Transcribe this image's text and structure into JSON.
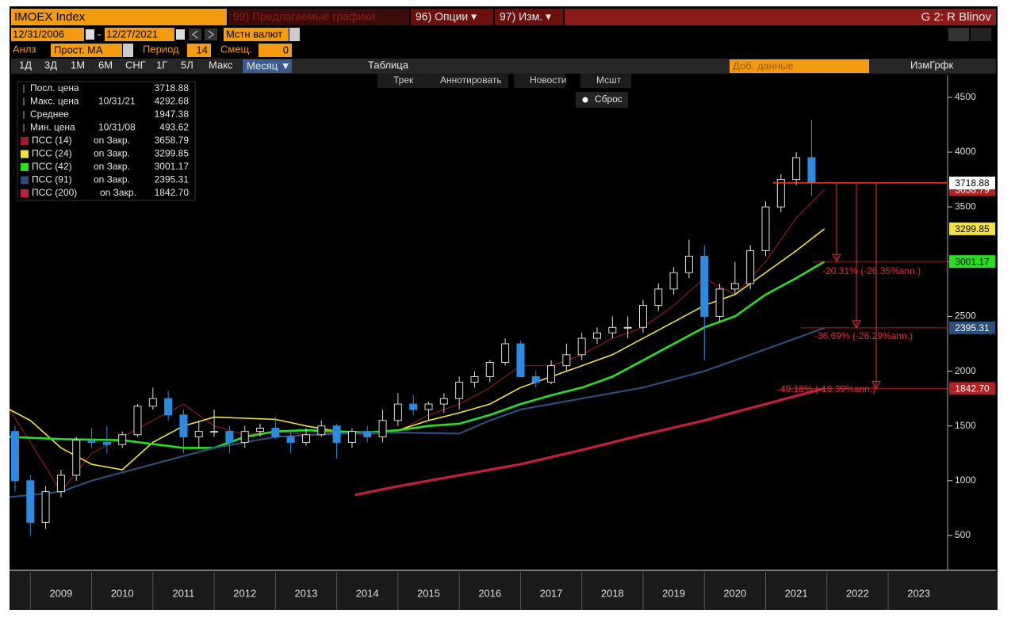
{
  "ui": {
    "security": "IMOEX Index",
    "suggested": "99) Предлагаемые графики",
    "options": "96) Опции ▾",
    "edit": "97) Изм. ▾",
    "user": "G 2: R Blinov",
    "start_date": "12/31/2006",
    "end_date": "12/27/2021",
    "currency": "Мстн валют",
    "analysis_label": "Анлз",
    "analysis": "Прост. MA",
    "period_label": "Период",
    "period": 14,
    "shift_label": "Смещ.",
    "shift": 0,
    "ranges": [
      "1Д",
      "3Д",
      "1М",
      "6М",
      "СНГ",
      "1Г",
      "5Л",
      "Макс"
    ],
    "frequency": "Месяц ▼",
    "table": "Таблица",
    "add_data": "Доб. данные",
    "edit_chart": "ИзмГрфк",
    "tools": [
      "Трек",
      "Аннотировать",
      "Новости",
      "Мсшт"
    ],
    "reset": "Сброс"
  },
  "chart_data": {
    "type": "candlestick",
    "xlim": [
      2008.66,
      2023.97
    ],
    "xticks": [
      {
        "value": 2009.5,
        "label": "2009"
      },
      {
        "value": 2010.5,
        "label": "2010"
      },
      {
        "value": 2011.5,
        "label": "2011"
      },
      {
        "value": 2012.5,
        "label": "2012"
      },
      {
        "value": 2013.5,
        "label": "2013"
      },
      {
        "value": 2014.5,
        "label": "2014"
      },
      {
        "value": 2015.5,
        "label": "2015"
      },
      {
        "value": 2016.5,
        "label": "2016"
      },
      {
        "value": 2017.5,
        "label": "2017"
      },
      {
        "value": 2018.5,
        "label": "2018"
      },
      {
        "value": 2019.5,
        "label": "2019"
      },
      {
        "value": 2020.5,
        "label": "2020"
      },
      {
        "value": 2021.5,
        "label": "2021"
      },
      {
        "value": 2022.5,
        "label": "2022"
      },
      {
        "value": 2023.5,
        "label": "2023"
      }
    ],
    "ylim": [
      196,
      4702
    ],
    "yticks": [
      500,
      1000,
      1500,
      2000,
      2500,
      3000,
      3500,
      4000,
      4500
    ],
    "stats": [
      {
        "name": "Посл. цена",
        "value": 3718.88
      },
      {
        "name": "Макс. цена",
        "date": "10/31/21",
        "value": 4292.68
      },
      {
        "name": "Среднее",
        "value": 1947.38
      },
      {
        "name": "Мин. цена",
        "date": "10/31/08",
        "value": 493.62
      }
    ],
    "candles": {
      "x": [
        2008.75,
        2009.0,
        2009.25,
        2009.5,
        2009.75,
        2010.0,
        2010.25,
        2010.5,
        2010.75,
        2011.0,
        2011.25,
        2011.5,
        2011.75,
        2012.0,
        2012.25,
        2012.5,
        2012.75,
        2013.0,
        2013.25,
        2013.5,
        2013.75,
        2014.0,
        2014.25,
        2014.5,
        2014.75,
        2015.0,
        2015.25,
        2015.5,
        2015.75,
        2016.0,
        2016.25,
        2016.5,
        2016.75,
        2017.0,
        2017.25,
        2017.5,
        2017.75,
        2018.0,
        2018.25,
        2018.5,
        2018.75,
        2019.0,
        2019.25,
        2019.5,
        2019.75,
        2020.0,
        2020.25,
        2020.5,
        2020.75,
        2021.0,
        2021.25,
        2021.5,
        2021.75
      ],
      "open": [
        1450,
        1000,
        620,
        900,
        1050,
        1370,
        1350,
        1330,
        1420,
        1680,
        1750,
        1600,
        1400,
        1450,
        1450,
        1350,
        1450,
        1480,
        1400,
        1350,
        1420,
        1500,
        1350,
        1450,
        1400,
        1550,
        1700,
        1650,
        1700,
        1750,
        1900,
        1950,
        2080,
        2250,
        1950,
        1900,
        2050,
        2150,
        2300,
        2350,
        2400,
        2400,
        2600,
        2750,
        2900,
        3050,
        2500,
        2750,
        2800,
        3100,
        3500,
        3750,
        3950
      ],
      "high": [
        1500,
        1050,
        950,
        1100,
        1400,
        1480,
        1500,
        1450,
        1700,
        1850,
        1820,
        1650,
        1550,
        1650,
        1500,
        1500,
        1520,
        1580,
        1450,
        1480,
        1550,
        1520,
        1480,
        1500,
        1650,
        1800,
        1780,
        1720,
        1800,
        1950,
        2000,
        2100,
        2300,
        2280,
        2000,
        2100,
        2250,
        2350,
        2400,
        2500,
        2500,
        2650,
        2800,
        2950,
        3200,
        3150,
        2800,
        3000,
        3150,
        3550,
        3800,
        4000,
        4292.68
      ],
      "low": [
        900,
        493.62,
        560,
        850,
        1000,
        1300,
        1250,
        1300,
        1400,
        1650,
        1550,
        1250,
        1300,
        1400,
        1250,
        1300,
        1400,
        1380,
        1250,
        1320,
        1400,
        1200,
        1300,
        1350,
        1350,
        1500,
        1600,
        1550,
        1620,
        1650,
        1850,
        1900,
        2050,
        1950,
        1850,
        1880,
        2000,
        2100,
        2250,
        2300,
        2300,
        2350,
        2550,
        2700,
        2850,
        2100,
        2450,
        2700,
        2750,
        3050,
        3450,
        3700,
        3600
      ],
      "close": [
        1000,
        620,
        900,
        1050,
        1370,
        1350,
        1330,
        1420,
        1680,
        1750,
        1600,
        1400,
        1450,
        1450,
        1350,
        1450,
        1480,
        1400,
        1350,
        1420,
        1500,
        1350,
        1450,
        1400,
        1550,
        1700,
        1650,
        1700,
        1750,
        1900,
        1950,
        2080,
        2250,
        1950,
        1900,
        2050,
        2150,
        2300,
        2350,
        2400,
        2400,
        2600,
        2750,
        2900,
        3050,
        2500,
        2750,
        2800,
        3100,
        3500,
        3750,
        3950,
        3718.88
      ],
      "up_color": "#d8d8d8",
      "down_color": "#2b8be0"
    },
    "series": [
      {
        "name": "ПСС (14)",
        "field": "on Закр.",
        "color": "#a31b2b",
        "last_label": "3658.79",
        "x": [
          2008.66,
          2009.0,
          2009.5,
          2010.0,
          2010.5,
          2011.0,
          2011.5,
          2012.0,
          2012.5,
          2013.0,
          2013.5,
          2014.0,
          2014.5,
          2015.0,
          2015.5,
          2016.0,
          2016.5,
          2017.0,
          2017.5,
          2018.0,
          2018.5,
          2019.0,
          2019.5,
          2020.0,
          2020.5,
          2021.0,
          2021.5,
          2021.96
        ],
        "values": [
          1650,
          1350,
          900,
          1250,
          1400,
          1550,
          1700,
          1500,
          1420,
          1450,
          1420,
          1440,
          1420,
          1450,
          1600,
          1700,
          1850,
          2050,
          2050,
          2150,
          2300,
          2400,
          2600,
          2850,
          2700,
          3000,
          3400,
          3658.79
        ]
      },
      {
        "name": "ПСС (24)",
        "field": "on Закр.",
        "color": "#f2e33a",
        "last_label": "3299.85",
        "x": [
          2008.66,
          2009.0,
          2009.5,
          2010.0,
          2010.5,
          2011.0,
          2011.5,
          2012.0,
          2012.5,
          2013.0,
          2013.5,
          2014.0,
          2014.5,
          2015.0,
          2015.5,
          2016.0,
          2016.5,
          2017.0,
          2017.5,
          2018.0,
          2018.5,
          2019.0,
          2019.5,
          2020.0,
          2020.5,
          2021.0,
          2021.5,
          2021.96
        ],
        "values": [
          1650,
          1550,
          1300,
          1150,
          1100,
          1350,
          1500,
          1580,
          1570,
          1560,
          1500,
          1450,
          1440,
          1460,
          1550,
          1620,
          1700,
          1850,
          1950,
          2050,
          2150,
          2300,
          2450,
          2600,
          2700,
          2900,
          3100,
          3299.85
        ]
      },
      {
        "name": "ПСС (42)",
        "field": "on Закр.",
        "color": "#27e020",
        "last_label": "3001.17",
        "x": [
          2008.66,
          2009.5,
          2010.5,
          2011.5,
          2012.0,
          2012.5,
          2013.0,
          2013.5,
          2014.0,
          2014.5,
          2015.0,
          2015.5,
          2016.0,
          2016.5,
          2017.0,
          2017.5,
          2018.0,
          2018.5,
          2019.0,
          2019.5,
          2020.0,
          2020.5,
          2021.0,
          2021.5,
          2021.96
        ],
        "values": [
          1400,
          1380,
          1370,
          1300,
          1300,
          1400,
          1450,
          1460,
          1450,
          1440,
          1460,
          1500,
          1520,
          1600,
          1700,
          1780,
          1850,
          1950,
          2100,
          2250,
          2400,
          2500,
          2700,
          2850,
          3001.17
        ]
      },
      {
        "name": "ПСС (91)",
        "field": "on Закр.",
        "color": "#2d4e7a",
        "last_label": "2395.31",
        "x": [
          2008.66,
          2009.5,
          2010.0,
          2011.0,
          2012.0,
          2013.0,
          2014.0,
          2015.0,
          2016.0,
          2016.5,
          2017.0,
          2018.0,
          2019.0,
          2020.0,
          2020.5,
          2021.0,
          2021.96
        ],
        "values": [
          850,
          900,
          1000,
          1150,
          1300,
          1400,
          1430,
          1440,
          1430,
          1550,
          1650,
          1750,
          1850,
          2000,
          2100,
          2200,
          2395.31
        ]
      },
      {
        "name": "ПСС (200)",
        "field": "on Закр.",
        "color": "#c41e3a",
        "last_label": "1842.70",
        "x": [
          2014.3,
          2015.0,
          2016.0,
          2017.0,
          2018.0,
          2019.0,
          2020.0,
          2021.0,
          2021.96
        ],
        "values": [
          870,
          950,
          1050,
          1150,
          1280,
          1420,
          1550,
          1700,
          1842.7
        ]
      }
    ],
    "annotations": [
      {
        "text": "-20.31% (-26.35%ann.)",
        "series": 2
      },
      {
        "text": "-36.69% (-26.29%ann.)",
        "series": 3
      },
      {
        "text": "-49.18% (-18.39%ann.)",
        "series": 4
      }
    ]
  }
}
